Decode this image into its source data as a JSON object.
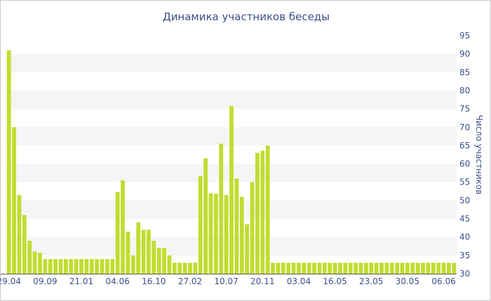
{
  "chart_data": {
    "type": "bar",
    "title": "Динамика участников беседы",
    "ylabel": "Число участников",
    "xlabel": "",
    "ylim": [
      30,
      95
    ],
    "y_ticks": [
      30,
      35,
      40,
      45,
      50,
      55,
      60,
      65,
      70,
      75,
      80,
      85,
      90,
      95
    ],
    "y_axis_side": "right",
    "x_tick_labels": [
      "29.04",
      "09.09",
      "21.01",
      "04.06",
      "16.10",
      "27.02",
      "10.07",
      "20.11",
      "03.04",
      "16.05",
      "23.05",
      "30.05",
      "06.06"
    ],
    "x_tick_bar_index": [
      0,
      7,
      14,
      21,
      28,
      35,
      42,
      49,
      56,
      63,
      70,
      77,
      84
    ],
    "grid": "alternating horizontal bands",
    "legend": "none",
    "bar_color": "#bfdd2f",
    "values": [
      91,
      70,
      51.5,
      46,
      39,
      36,
      35.7,
      34,
      34,
      34,
      34,
      34,
      34,
      34,
      34,
      34,
      34,
      34,
      34,
      34,
      34,
      52.3,
      55.5,
      41.5,
      35,
      44,
      42,
      42,
      39,
      37,
      37,
      35,
      33,
      33,
      33,
      33,
      33,
      56.7,
      61.5,
      52,
      51.8,
      65.5,
      51.5,
      75.8,
      56,
      51,
      43.5,
      55,
      63,
      63.6,
      65,
      33,
      33,
      33,
      33,
      33,
      33,
      33,
      33,
      33,
      33,
      33,
      33,
      33,
      33,
      33,
      33,
      33,
      33,
      33,
      33,
      33,
      33,
      33,
      33,
      33,
      33,
      33,
      33,
      33,
      33,
      33,
      33,
      33,
      33,
      33,
      33
    ]
  }
}
